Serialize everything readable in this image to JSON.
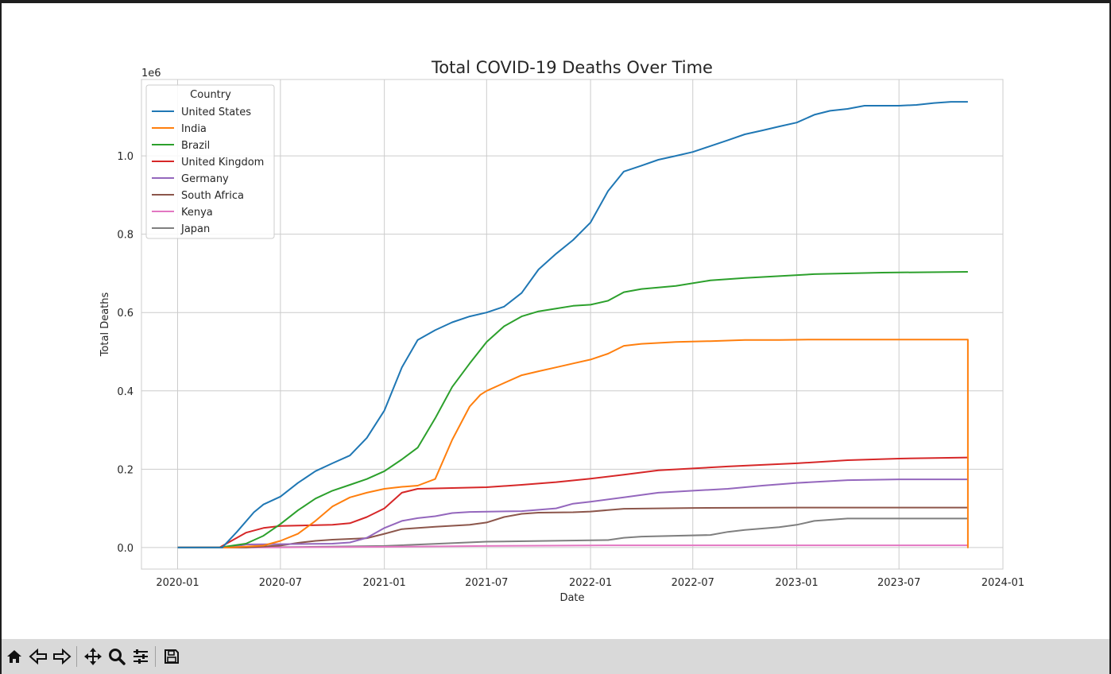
{
  "chart_data": {
    "type": "line",
    "title": "Total COVID-19 Deaths Over Time",
    "xlabel": "Date",
    "ylabel": "Total Deaths",
    "y_offset_label": "1e6",
    "x_tick_labels": [
      "2020-01",
      "2020-07",
      "2021-01",
      "2021-07",
      "2022-01",
      "2022-07",
      "2023-01",
      "2023-07",
      "2024-01"
    ],
    "y_tick_labels": [
      "0.0",
      "0.2",
      "0.4",
      "0.6",
      "0.8",
      "1.0"
    ],
    "y_ticks": [
      0,
      200000,
      400000,
      600000,
      800000,
      1000000
    ],
    "xlim": [
      "2019-10-29",
      "2024-01-01"
    ],
    "ylim": [
      -55000,
      1195000
    ],
    "grid": true,
    "legend_title": "Country",
    "legend_position": "top-left",
    "series": [
      {
        "name": "United States",
        "color": "#1f77b4",
        "x": [
          "2020-01-01",
          "2020-03-20",
          "2020-04-15",
          "2020-05-15",
          "2020-06-01",
          "2020-07-01",
          "2020-08-01",
          "2020-09-01",
          "2020-10-01",
          "2020-11-01",
          "2020-12-01",
          "2021-01-01",
          "2021-02-01",
          "2021-03-01",
          "2021-04-01",
          "2021-05-01",
          "2021-06-01",
          "2021-07-01",
          "2021-08-01",
          "2021-09-01",
          "2021-10-01",
          "2021-11-01",
          "2021-12-01",
          "2022-01-01",
          "2022-02-01",
          "2022-03-01",
          "2022-04-01",
          "2022-05-01",
          "2022-06-01",
          "2022-07-01",
          "2022-08-01",
          "2022-09-01",
          "2022-10-01",
          "2022-11-01",
          "2022-12-01",
          "2023-01-01",
          "2023-02-01",
          "2023-03-01",
          "2023-04-01",
          "2023-05-01",
          "2023-06-01",
          "2023-07-01",
          "2023-08-01",
          "2023-09-01",
          "2023-10-01",
          "2023-10-31"
        ],
        "y": [
          0,
          0,
          40000,
          90000,
          110000,
          130000,
          165000,
          195000,
          215000,
          235000,
          280000,
          350000,
          460000,
          530000,
          555000,
          575000,
          590000,
          600000,
          615000,
          650000,
          710000,
          750000,
          785000,
          830000,
          910000,
          960000,
          975000,
          990000,
          1000000,
          1010000,
          1025000,
          1040000,
          1055000,
          1065000,
          1075000,
          1085000,
          1105000,
          1115000,
          1120000,
          1128000,
          1128000,
          1128000,
          1130000,
          1135000,
          1138000,
          1138000
        ]
      },
      {
        "name": "India",
        "color": "#ff7f0e",
        "x": [
          "2020-01-01",
          "2020-04-01",
          "2020-06-01",
          "2020-07-01",
          "2020-08-01",
          "2020-09-01",
          "2020-10-01",
          "2020-11-01",
          "2020-12-01",
          "2021-01-01",
          "2021-02-01",
          "2021-03-01",
          "2021-04-01",
          "2021-05-01",
          "2021-06-01",
          "2021-06-20",
          "2021-07-01",
          "2021-08-01",
          "2021-09-01",
          "2021-10-01",
          "2021-11-01",
          "2021-12-01",
          "2022-01-01",
          "2022-02-01",
          "2022-03-01",
          "2022-04-01",
          "2022-06-01",
          "2022-08-01",
          "2022-10-01",
          "2022-12-01",
          "2023-02-01",
          "2023-06-01",
          "2023-10-31",
          "2023-10-31",
          "2023-11-01"
        ],
        "y": [
          0,
          0,
          5000,
          17000,
          35000,
          68000,
          105000,
          128000,
          140000,
          150000,
          155000,
          158000,
          175000,
          275000,
          360000,
          390000,
          400000,
          420000,
          440000,
          450000,
          460000,
          470000,
          480000,
          495000,
          515000,
          520000,
          525000,
          527000,
          530000,
          530000,
          531000,
          531000,
          531000,
          0,
          0
        ]
      },
      {
        "name": "Brazil",
        "color": "#2ca02c",
        "x": [
          "2020-01-01",
          "2020-03-15",
          "2020-05-01",
          "2020-06-01",
          "2020-07-01",
          "2020-08-01",
          "2020-09-01",
          "2020-10-01",
          "2020-11-01",
          "2020-12-01",
          "2021-01-01",
          "2021-02-01",
          "2021-03-01",
          "2021-04-01",
          "2021-05-01",
          "2021-06-01",
          "2021-07-01",
          "2021-08-01",
          "2021-09-01",
          "2021-10-01",
          "2021-11-01",
          "2021-12-01",
          "2022-01-01",
          "2022-02-01",
          "2022-03-01",
          "2022-04-01",
          "2022-06-01",
          "2022-08-01",
          "2022-10-01",
          "2022-12-01",
          "2023-02-01",
          "2023-06-01",
          "2023-10-31"
        ],
        "y": [
          0,
          0,
          10000,
          30000,
          60000,
          95000,
          125000,
          145000,
          160000,
          175000,
          195000,
          225000,
          255000,
          330000,
          410000,
          470000,
          525000,
          565000,
          590000,
          603000,
          610000,
          617000,
          620000,
          630000,
          652000,
          660000,
          668000,
          682000,
          688000,
          693000,
          698000,
          702000,
          704000
        ]
      },
      {
        "name": "United Kingdom",
        "color": "#d62728",
        "x": [
          "2020-01-01",
          "2020-03-15",
          "2020-04-15",
          "2020-05-01",
          "2020-06-01",
          "2020-07-01",
          "2020-08-01",
          "2020-09-01",
          "2020-10-01",
          "2020-11-01",
          "2020-12-01",
          "2021-01-01",
          "2021-02-01",
          "2021-03-01",
          "2021-05-01",
          "2021-07-01",
          "2021-09-01",
          "2021-11-01",
          "2022-01-01",
          "2022-03-01",
          "2022-05-01",
          "2022-07-01",
          "2022-09-01",
          "2022-11-01",
          "2023-01-01",
          "2023-04-01",
          "2023-07-01",
          "2023-10-31"
        ],
        "y": [
          0,
          0,
          25000,
          38000,
          50000,
          55000,
          56000,
          57000,
          58000,
          62000,
          78000,
          100000,
          140000,
          150000,
          152000,
          154000,
          160000,
          167000,
          176000,
          186000,
          197000,
          202000,
          207000,
          211000,
          215000,
          223000,
          227000,
          230000
        ]
      },
      {
        "name": "Germany",
        "color": "#9467bd",
        "x": [
          "2020-01-01",
          "2020-04-01",
          "2020-05-01",
          "2020-10-01",
          "2020-11-01",
          "2020-12-01",
          "2021-01-01",
          "2021-02-01",
          "2021-03-01",
          "2021-04-01",
          "2021-05-01",
          "2021-06-01",
          "2021-09-01",
          "2021-11-01",
          "2021-12-01",
          "2022-01-01",
          "2022-03-01",
          "2022-05-01",
          "2022-07-01",
          "2022-09-01",
          "2022-11-01",
          "2023-01-01",
          "2023-04-01",
          "2023-07-01",
          "2023-10-31"
        ],
        "y": [
          0,
          0,
          8000,
          10000,
          13000,
          25000,
          50000,
          68000,
          75000,
          80000,
          88000,
          91000,
          93000,
          100000,
          112000,
          117000,
          128000,
          140000,
          145000,
          150000,
          158000,
          165000,
          172000,
          174000,
          174000
        ]
      },
      {
        "name": "South Africa",
        "color": "#8c564b",
        "x": [
          "2020-01-01",
          "2020-05-01",
          "2020-07-01",
          "2020-08-01",
          "2020-09-01",
          "2020-10-01",
          "2020-12-01",
          "2021-01-01",
          "2021-02-01",
          "2021-04-01",
          "2021-06-01",
          "2021-07-01",
          "2021-08-01",
          "2021-09-01",
          "2021-10-01",
          "2021-12-01",
          "2022-01-01",
          "2022-03-01",
          "2022-07-01",
          "2023-01-01",
          "2023-10-31"
        ],
        "y": [
          0,
          0,
          5000,
          12000,
          17000,
          20000,
          24000,
          35000,
          47000,
          53000,
          58000,
          64000,
          78000,
          86000,
          89000,
          90000,
          92000,
          99000,
          101000,
          102000,
          102000
        ]
      },
      {
        "name": "Kenya",
        "color": "#e377c2",
        "x": [
          "2020-01-01",
          "2020-07-01",
          "2021-01-01",
          "2021-07-01",
          "2022-01-01",
          "2022-07-01",
          "2023-10-31"
        ],
        "y": [
          0,
          400,
          1800,
          4000,
          5500,
          5700,
          5700
        ]
      },
      {
        "name": "Japan",
        "color": "#7f7f7f",
        "x": [
          "2020-01-01",
          "2020-07-01",
          "2021-01-01",
          "2021-07-01",
          "2022-01-01",
          "2022-02-01",
          "2022-03-01",
          "2022-04-01",
          "2022-08-01",
          "2022-09-01",
          "2022-10-01",
          "2022-12-01",
          "2023-01-01",
          "2023-02-01",
          "2023-04-01",
          "2023-10-31"
        ],
        "y": [
          0,
          1000,
          4000,
          15000,
          18500,
          19000,
          25000,
          28000,
          32000,
          40000,
          45000,
          52000,
          58000,
          68000,
          74000,
          74000
        ]
      }
    ]
  },
  "toolbar": {
    "buttons": [
      "home-icon",
      "back-icon",
      "forward-icon",
      "pan-icon",
      "zoom-icon",
      "configure-icon",
      "save-icon"
    ]
  }
}
